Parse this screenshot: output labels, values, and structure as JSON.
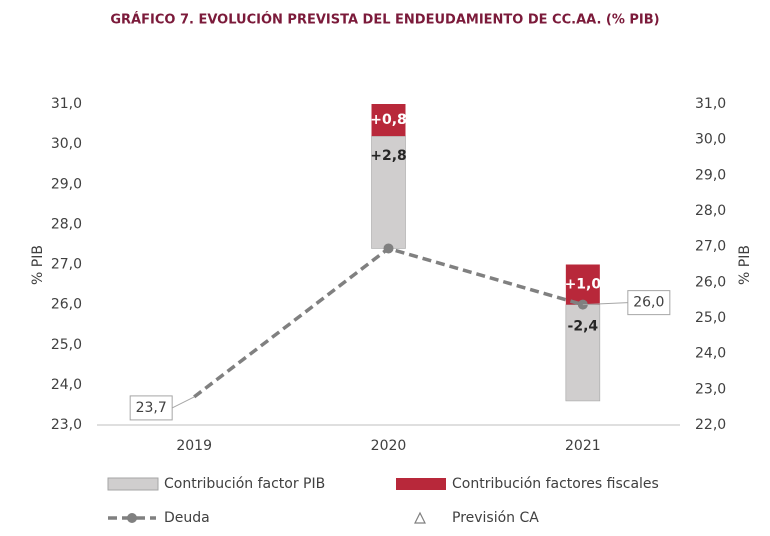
{
  "chart_data": {
    "type": "waterfall",
    "title": "GRÁFICO 7. EVOLUCIÓN PREVISTA DEL ENDEUDAMIENTO DE CC.AA. (% PIB)",
    "ylabel": "% PIB",
    "y2label": "% PIB",
    "categories": [
      "2019",
      "2020",
      "2021"
    ],
    "series": [
      {
        "name": "Contribución factor PIB",
        "color": "#d0cece",
        "kind": "bar",
        "values": [
          null,
          2.8,
          -2.4
        ],
        "value_labels": [
          null,
          "+2,8",
          "-2,4"
        ]
      },
      {
        "name": "Contribución factores fiscales",
        "color": "#b8283a",
        "kind": "bar",
        "values": [
          null,
          0.8,
          1.0
        ],
        "value_labels": [
          null,
          "+0,8",
          "+1,0"
        ]
      },
      {
        "name": "Deuda",
        "color": "#808080",
        "kind": "line",
        "values": [
          23.7,
          27.4,
          26.0
        ],
        "value_labels": [
          "23,7",
          null,
          "26,0"
        ]
      },
      {
        "name": "Previsión CA",
        "color": "#808080",
        "kind": "marker",
        "values": [
          null,
          null,
          null
        ]
      }
    ],
    "ylim": [
      23,
      31
    ],
    "yticks": [
      {
        "value": 23,
        "label": "23,0"
      },
      {
        "value": 24,
        "label": "24,0"
      },
      {
        "value": 25,
        "label": "25,0"
      },
      {
        "value": 26,
        "label": "26,0"
      },
      {
        "value": 27,
        "label": "27,0"
      },
      {
        "value": 28,
        "label": "28,0"
      },
      {
        "value": 29,
        "label": "29,0"
      },
      {
        "value": 30,
        "label": "30,0"
      },
      {
        "value": 31,
        "label": "31,0"
      }
    ],
    "y2lim": [
      22,
      31
    ],
    "y2ticks": [
      {
        "value": 22,
        "label": "22,0"
      },
      {
        "value": 23,
        "label": "23,0"
      },
      {
        "value": 24,
        "label": "24,0"
      },
      {
        "value": 25,
        "label": "25,0"
      },
      {
        "value": 26,
        "label": "26,0"
      },
      {
        "value": 27,
        "label": "27,0"
      },
      {
        "value": 28,
        "label": "28,0"
      },
      {
        "value": 29,
        "label": "29,0"
      },
      {
        "value": 30,
        "label": "30,0"
      },
      {
        "value": 31,
        "label": "31,0"
      }
    ]
  }
}
